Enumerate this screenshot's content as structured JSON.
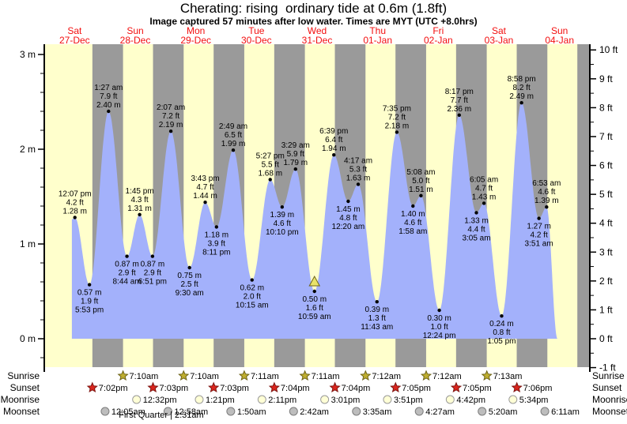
{
  "title": "Cherating: rising  ordinary tide at 0.6m (1.8ft)",
  "subtitle": "Image captured 57 minutes after low water. Times are MYT (UTC +8.0hrs)",
  "chart_data": {
    "type": "area",
    "title": "Cherating tide heights",
    "ylabel_left": "meters",
    "ylabel_right": "feet",
    "y_axis_left_ticks": [
      {
        "v": 3,
        "label": "3 m"
      },
      {
        "v": 2,
        "label": "2 m"
      },
      {
        "v": 1,
        "label": "1 m"
      },
      {
        "v": 0,
        "label": "0 m"
      }
    ],
    "y_axis_right_ticks": [
      {
        "v": 10,
        "label": "10 ft"
      },
      {
        "v": 9,
        "label": "9 ft"
      },
      {
        "v": 8,
        "label": "8 ft"
      },
      {
        "v": 7,
        "label": "7 ft"
      },
      {
        "v": 6,
        "label": "6 ft"
      },
      {
        "v": 5,
        "label": "5 ft"
      },
      {
        "v": 4,
        "label": "4 ft"
      },
      {
        "v": 3,
        "label": "3 ft"
      },
      {
        "v": 2,
        "label": "2 ft"
      },
      {
        "v": 1,
        "label": "1 ft"
      },
      {
        "v": 0,
        "label": "0 ft"
      },
      {
        "v": -1,
        "label": "-1 ft"
      }
    ],
    "days": [
      {
        "name": "Sat",
        "date": "27-Dec"
      },
      {
        "name": "Sun",
        "date": "28-Dec"
      },
      {
        "name": "Mon",
        "date": "29-Dec"
      },
      {
        "name": "Tue",
        "date": "30-Dec"
      },
      {
        "name": "Wed",
        "date": "31-Dec"
      },
      {
        "name": "Thu",
        "date": "01-Jan"
      },
      {
        "name": "Fri",
        "date": "02-Jan"
      },
      {
        "name": "Sat",
        "date": "03-Jan"
      },
      {
        "name": "Sun",
        "date": "04-Jan"
      }
    ],
    "night_shading": {
      "sunset_frac": 0.79375,
      "sunrise_frac": 0.29917
    },
    "tide_events": [
      {
        "day": 0,
        "type": "high",
        "time": "12:07 pm",
        "ft": "4.2 ft",
        "m": "1.28 m"
      },
      {
        "day": 0,
        "type": "low",
        "time": "5:53 pm",
        "ft": "1.9 ft",
        "m": "0.57 m"
      },
      {
        "day": 1,
        "type": "high",
        "time": "1:27 am",
        "ft": "7.9 ft",
        "m": "2.40 m"
      },
      {
        "day": 1,
        "type": "low",
        "time": "8:44 am",
        "ft": "2.9 ft",
        "m": "0.87 m"
      },
      {
        "day": 1,
        "type": "high",
        "time": "1:45 pm",
        "ft": "4.3 ft",
        "m": "1.31 m"
      },
      {
        "day": 1,
        "type": "low",
        "time": "6:51 pm",
        "ft": "2.9 ft",
        "m": "0.87 m"
      },
      {
        "day": 2,
        "type": "high",
        "time": "2:07 am",
        "ft": "7.2 ft",
        "m": "2.19 m"
      },
      {
        "day": 2,
        "type": "low",
        "time": "9:30 am",
        "ft": "2.5 ft",
        "m": "0.75 m"
      },
      {
        "day": 2,
        "type": "high",
        "time": "3:43 pm",
        "ft": "4.7 ft",
        "m": "1.44 m"
      },
      {
        "day": 2,
        "type": "low",
        "time": "8:11 pm",
        "ft": "3.9 ft",
        "m": "1.18 m"
      },
      {
        "day": 3,
        "type": "high",
        "time": "2:49 am",
        "ft": "6.5 ft",
        "m": "1.99 m"
      },
      {
        "day": 3,
        "type": "low",
        "time": "10:15 am",
        "ft": "2.0 ft",
        "m": "0.62 m"
      },
      {
        "day": 3,
        "type": "high",
        "time": "5:27 pm",
        "ft": "5.5 ft",
        "m": "1.68 m"
      },
      {
        "day": 3,
        "type": "low",
        "time": "10:10 pm",
        "ft": "4.6 ft",
        "m": "1.39 m"
      },
      {
        "day": 4,
        "type": "high",
        "time": "3:29 am",
        "ft": "5.9 ft",
        "m": "1.79 m"
      },
      {
        "day": 4,
        "type": "low",
        "time": "10:59 am",
        "ft": "1.6 ft",
        "m": "0.50 m",
        "marker": true
      },
      {
        "day": 4,
        "type": "high",
        "time": "6:39 pm",
        "ft": "6.4 ft",
        "m": "1.94 m"
      },
      {
        "day": 5,
        "type": "low",
        "time": "12:20 am",
        "ft": "4.8 ft",
        "m": "1.45 m"
      },
      {
        "day": 5,
        "type": "high",
        "time": "4:17 am",
        "ft": "5.3 ft",
        "m": "1.63 m"
      },
      {
        "day": 5,
        "type": "low",
        "time": "11:43 am",
        "ft": "1.3 ft",
        "m": "0.39 m"
      },
      {
        "day": 5,
        "type": "high",
        "time": "7:35 pm",
        "ft": "7.2 ft",
        "m": "2.18 m"
      },
      {
        "day": 6,
        "type": "low",
        "time": "1:58 am",
        "ft": "4.6 ft",
        "m": "1.40 m"
      },
      {
        "day": 6,
        "type": "high",
        "time": "5:08 am",
        "ft": "5.0 ft",
        "m": "1.51 m"
      },
      {
        "day": 6,
        "type": "low",
        "time": "12:24 pm",
        "ft": "1.0 ft",
        "m": "0.30 m"
      },
      {
        "day": 6,
        "type": "high",
        "time": "8:17 pm",
        "ft": "7.7 ft",
        "m": "2.36 m"
      },
      {
        "day": 7,
        "type": "low",
        "time": "3:05 am",
        "ft": "4.4 ft",
        "m": "1.33 m"
      },
      {
        "day": 7,
        "type": "high",
        "time": "6:05 am",
        "ft": "4.7 ft",
        "m": "1.43 m"
      },
      {
        "day": 7,
        "type": "low",
        "time": "1:05 pm",
        "ft": "0.8 ft",
        "m": "0.24 m"
      },
      {
        "day": 7,
        "type": "high",
        "time": "8:58 pm",
        "ft": "8.2 ft",
        "m": "2.49 m"
      },
      {
        "day": 8,
        "type": "low",
        "time": "3:51 am",
        "ft": "4.2 ft",
        "m": "1.27 m"
      },
      {
        "day": 8,
        "type": "high",
        "time": "6:53 am",
        "ft": "4.6 ft",
        "m": "1.39 m"
      }
    ],
    "curve_start": {
      "day": 0,
      "time": "10:55 am",
      "height_m": 1.26
    },
    "curve_end": {
      "day": 8,
      "time": "11:10 am",
      "height_m": 0.0
    },
    "colors": {
      "day_band": "#ffffcc",
      "night_band": "#9a9a9a",
      "tide_fill": "#a3b1fb",
      "axis": "#000000",
      "date_red": "#f30f0f",
      "marker_fill": "#e9e36a",
      "marker_stroke": "#6f651c",
      "sunrise_star_fill": "#bfae2f",
      "sunrise_star_stroke": "#6d6318",
      "sunset_star_fill": "#da251d",
      "sunset_star_stroke": "#7c1410",
      "moonrise_fill": "#ffffd6",
      "moonrise_stroke": "#999999",
      "moonset_fill": "#bdbdbd",
      "moonset_stroke": "#7d7d7d"
    }
  },
  "astro": {
    "rows": [
      {
        "label": "Sunrise",
        "icon": "sunrise-star",
        "events": [
          {
            "day": 1,
            "time": "7:10am"
          },
          {
            "day": 2,
            "time": "7:10am"
          },
          {
            "day": 3,
            "time": "7:11am"
          },
          {
            "day": 4,
            "time": "7:11am"
          },
          {
            "day": 5,
            "time": "7:12am"
          },
          {
            "day": 6,
            "time": "7:12am"
          },
          {
            "day": 7,
            "time": "7:13am"
          }
        ]
      },
      {
        "label": "Sunset",
        "icon": "sunset-star",
        "events": [
          {
            "day": 0,
            "time": "7:02pm"
          },
          {
            "day": 1,
            "time": "7:03pm"
          },
          {
            "day": 2,
            "time": "7:03pm"
          },
          {
            "day": 3,
            "time": "7:04pm"
          },
          {
            "day": 4,
            "time": "7:04pm"
          },
          {
            "day": 5,
            "time": "7:05pm"
          },
          {
            "day": 6,
            "time": "7:05pm"
          },
          {
            "day": 7,
            "time": "7:06pm"
          }
        ]
      },
      {
        "label": "Moonrise",
        "icon": "moonrise-circle",
        "events": [
          {
            "day": 1,
            "time": "12:32pm"
          },
          {
            "day": 2,
            "time": "1:21pm"
          },
          {
            "day": 3,
            "time": "2:11pm"
          },
          {
            "day": 4,
            "time": "3:01pm"
          },
          {
            "day": 5,
            "time": "3:51pm"
          },
          {
            "day": 6,
            "time": "4:42pm"
          },
          {
            "day": 7,
            "time": "5:34pm"
          }
        ]
      },
      {
        "label": "Moonset",
        "icon": "moonset-circle",
        "events": [
          {
            "day": 1,
            "time": "12:05am"
          },
          {
            "day": 2,
            "time": "12:58am"
          },
          {
            "day": 3,
            "time": "1:50am"
          },
          {
            "day": 4,
            "time": "2:42am"
          },
          {
            "day": 5,
            "time": "3:35am"
          },
          {
            "day": 6,
            "time": "4:27am"
          },
          {
            "day": 7,
            "time": "5:20am"
          },
          {
            "day": 8,
            "time": "6:11am"
          }
        ]
      }
    ],
    "moon_phase": "First Quarter | 2:31am"
  }
}
